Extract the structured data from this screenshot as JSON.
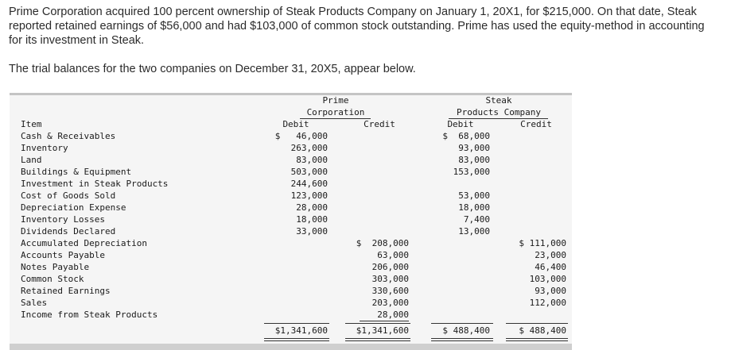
{
  "intro": {
    "paragraph": "Prime Corporation acquired 100 percent ownership of Steak Products Company on January 1, 20X1, for $215,000. On that date, Steak reported retained earnings of $56,000 and had $103,000 of common stock outstanding. Prime has used the equity-method in accounting for its investment in Steak.",
    "trial_sentence": "The trial balances for the two companies on December 31, 20X5, appear below."
  },
  "table": {
    "prime_header_line1": "Prime",
    "prime_header_line2": "Corporation",
    "steak_header_line1": "Steak",
    "steak_header_line2": "Products Company",
    "col_item": "Item",
    "col_debit": "Debit",
    "col_credit": "Credit",
    "rows": [
      {
        "item": "Cash & Receivables",
        "pd": "$   46,000",
        "pc": "",
        "sd": "$  68,000",
        "sc": ""
      },
      {
        "item": "Inventory",
        "pd": "263,000",
        "pc": "",
        "sd": "93,000",
        "sc": ""
      },
      {
        "item": "Land",
        "pd": "83,000",
        "pc": "",
        "sd": "83,000",
        "sc": ""
      },
      {
        "item": "Buildings & Equipment",
        "pd": "503,000",
        "pc": "",
        "sd": "153,000",
        "sc": ""
      },
      {
        "item": "Investment in Steak Products",
        "pd": "244,600",
        "pc": "",
        "sd": "",
        "sc": ""
      },
      {
        "item": "Cost of Goods Sold",
        "pd": "123,000",
        "pc": "",
        "sd": "53,000",
        "sc": ""
      },
      {
        "item": "Depreciation Expense",
        "pd": "28,000",
        "pc": "",
        "sd": "18,000",
        "sc": ""
      },
      {
        "item": "Inventory Losses",
        "pd": "18,000",
        "pc": "",
        "sd": "7,400",
        "sc": ""
      },
      {
        "item": "Dividends Declared",
        "pd": "33,000",
        "pc": "",
        "sd": "13,000",
        "sc": ""
      },
      {
        "item": "Accumulated Depreciation",
        "pd": "",
        "pc": "$  208,000",
        "sd": "",
        "sc": "$ 111,000"
      },
      {
        "item": "Accounts Payable",
        "pd": "",
        "pc": "63,000",
        "sd": "",
        "sc": "23,000"
      },
      {
        "item": "Notes Payable",
        "pd": "",
        "pc": "206,000",
        "sd": "",
        "sc": "46,400"
      },
      {
        "item": "Common Stock",
        "pd": "",
        "pc": "303,000",
        "sd": "",
        "sc": "103,000"
      },
      {
        "item": "Retained Earnings",
        "pd": "",
        "pc": "330,600",
        "sd": "",
        "sc": "93,000"
      },
      {
        "item": "Sales",
        "pd": "",
        "pc": "203,000",
        "sd": "",
        "sc": "112,000"
      },
      {
        "item": "Income from Steak Products",
        "pd": "",
        "pc": "28,000",
        "sd": "",
        "sc": ""
      }
    ],
    "totals": {
      "pd": "$1,341,600",
      "pc": "$1,341,600",
      "sd": "$ 488,400",
      "sc": "$ 488,400"
    }
  }
}
